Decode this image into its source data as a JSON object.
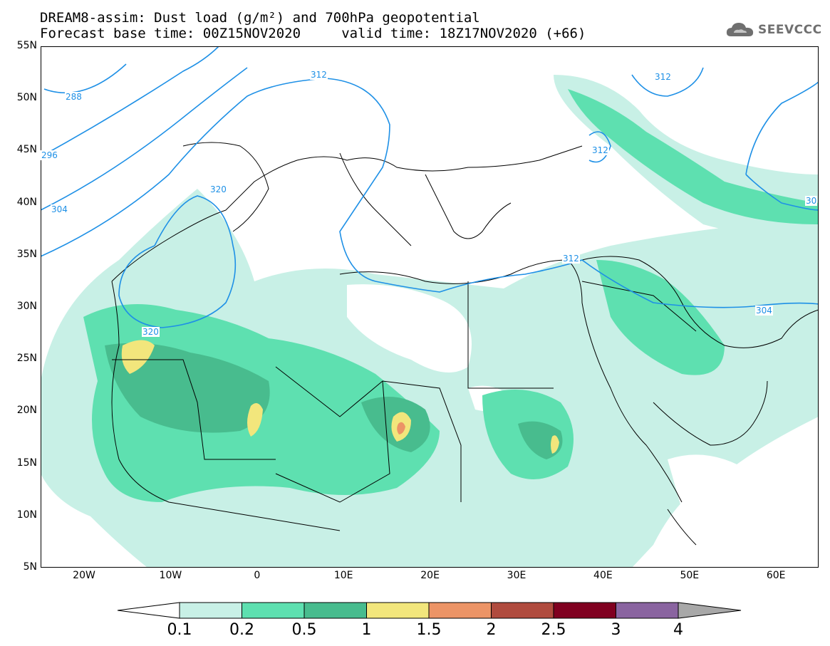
{
  "title_line1": "DREAM8-assim: Dust load (g/m²) and 700hPa geopotential",
  "title_line2": "Forecast base time: 00Z15NOV2020     valid time: 18Z17NOV2020 (+66)",
  "logo_text": "SEEVCCC",
  "lat_ticks": [
    "55N",
    "50N",
    "45N",
    "40N",
    "35N",
    "30N",
    "25N",
    "20N",
    "15N",
    "10N",
    "5N"
  ],
  "lon_ticks": [
    "20W",
    "10W",
    "0",
    "10E",
    "20E",
    "30E",
    "40E",
    "50E",
    "60E"
  ],
  "contour_labels": [
    "288",
    "296",
    "304",
    "320",
    "320",
    "312",
    "312",
    "304",
    "312",
    "312",
    "30"
  ],
  "colorbar": {
    "labels": [
      "0.1",
      "0.2",
      "0.5",
      "1",
      "1.5",
      "2",
      "2.5",
      "3",
      "4"
    ],
    "colors": [
      "#c8f0e6",
      "#5ee0b0",
      "#48bc8e",
      "#f2e67c",
      "#ec9466",
      "#b04b3e",
      "#800020",
      "#8a64a0"
    ],
    "under_color": "#ffffff",
    "over_color": "#a8a8a8"
  },
  "colors": {
    "contour": "#1e90e6",
    "border": "#000000"
  }
}
